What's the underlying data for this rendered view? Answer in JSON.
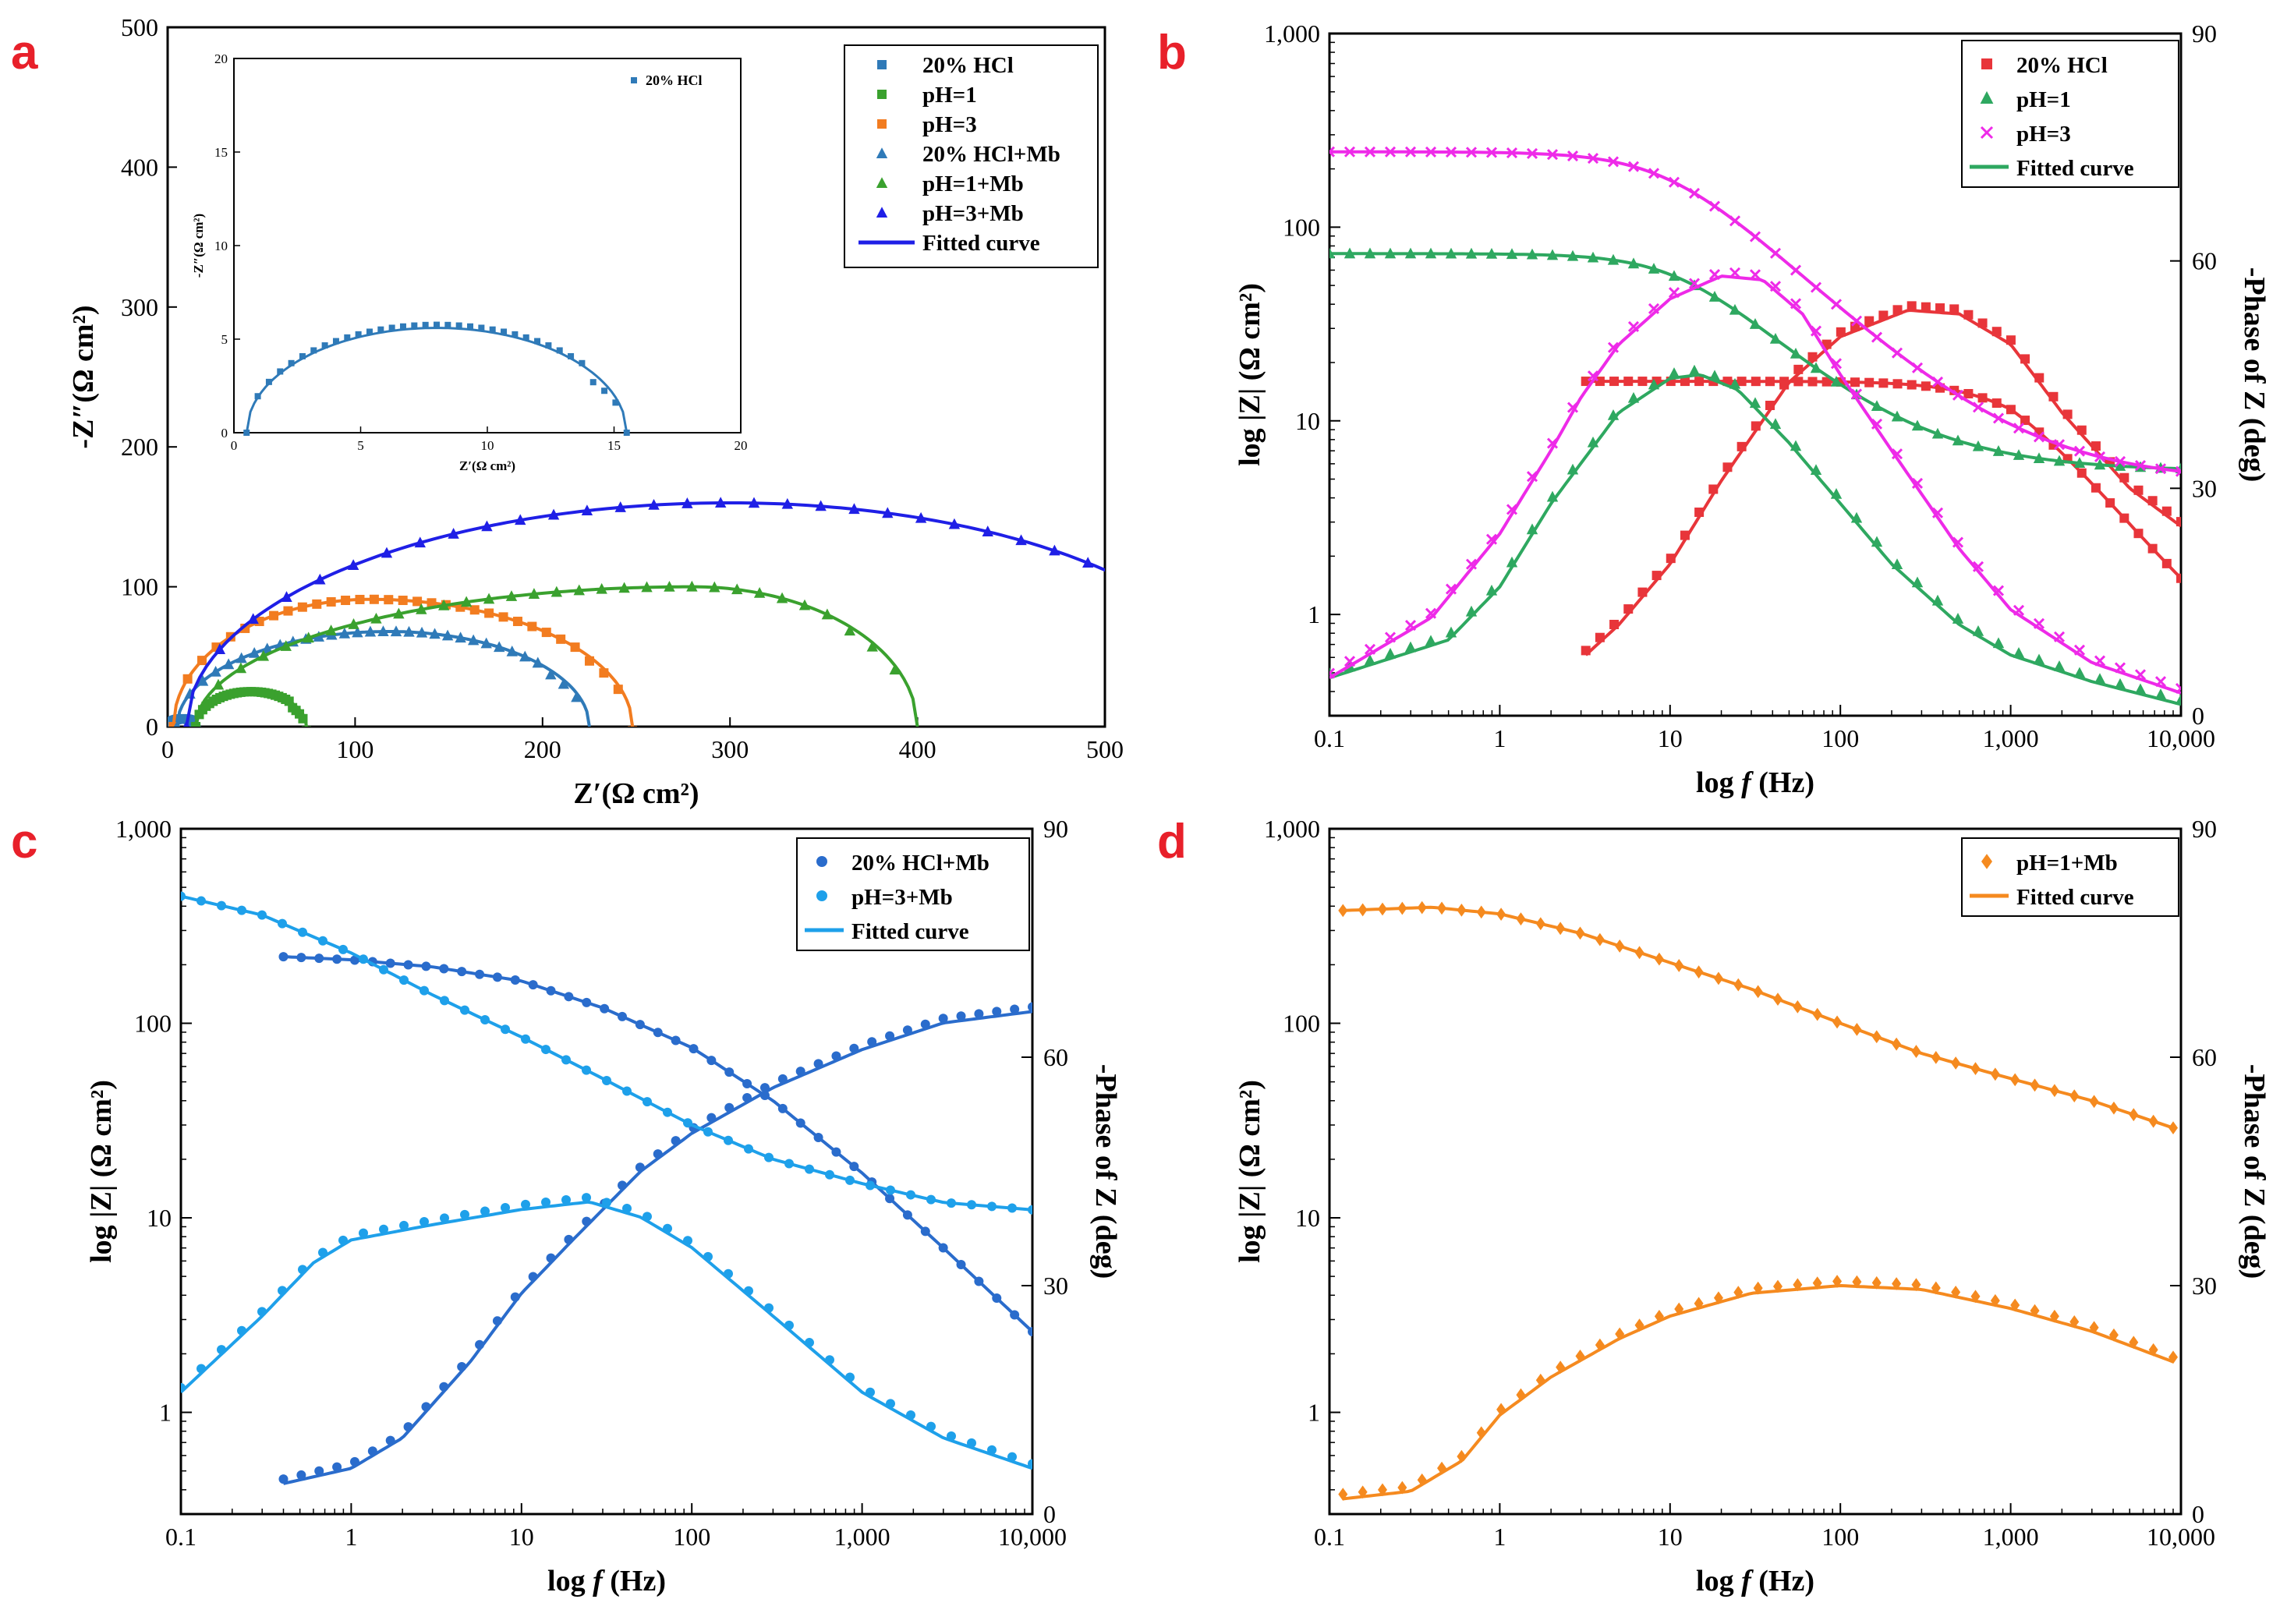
{
  "chart_data": [
    {
      "panel": "a",
      "type": "scatter",
      "title": "",
      "xlabel": "Z′(Ω cm²)",
      "ylabel": "-Z″(Ω cm²)",
      "xlim": [
        0,
        500
      ],
      "ylim": [
        0,
        500
      ],
      "xticks": [
        0,
        100,
        200,
        300,
        400,
        500
      ],
      "yticks": [
        0,
        100,
        200,
        300,
        400,
        500
      ],
      "series": [
        {
          "name": "20% HCl",
          "marker": "square",
          "color": "#2f7ab8",
          "arc": {
            "r0": 0.5,
            "r1": 15.5,
            "hmax": 5.6
          }
        },
        {
          "name": "pH=1",
          "marker": "square",
          "color": "#3aa12e",
          "arc": {
            "r0": 15,
            "r1": 74,
            "hmax": 25
          }
        },
        {
          "name": "pH=3",
          "marker": "square",
          "color": "#f27c20",
          "arc": {
            "r0": 3,
            "r1": 248,
            "hmax": 91,
            "peak": 108
          }
        },
        {
          "name": "20% HCl+Mb",
          "marker": "triangle",
          "color": "#2f7ab8",
          "arc": {
            "r0": 5,
            "r1": 225,
            "hmax": 68,
            "peak": 118
          }
        },
        {
          "name": "pH=1+Mb",
          "marker": "triangle",
          "color": "#3aa12e",
          "arc": {
            "r0": 15,
            "r1": 400,
            "hmax": 100,
            "peak": 280
          }
        },
        {
          "name": "pH=3+Mb",
          "marker": "triangle",
          "color": "#1f1fe6",
          "arc": {
            "r0": 10,
            "r1": 580,
            "hmax": 160,
            "peak": 300
          }
        }
      ],
      "fit_label": "Fitted curve",
      "fit_color": "#1f1fe6",
      "inset": {
        "xlabel": "Z′(Ω cm²)",
        "ylabel": "-Z″(Ω cm²)",
        "xlim": [
          0,
          20
        ],
        "ylim": [
          0,
          20
        ],
        "xticks": [
          0,
          5,
          10,
          15,
          20
        ],
        "yticks": [
          0,
          5,
          10,
          15,
          20
        ],
        "legend": "20% HCl",
        "color": "#2f7ab8"
      }
    },
    {
      "panel": "b",
      "type": "line",
      "xlabel": "log f (Hz)",
      "ylabel": "log |Z| (Ω cm²)",
      "y2label": "-Phase of Z (deg)",
      "xlim": [
        0.1,
        10000
      ],
      "ylim": [
        0.3,
        1000
      ],
      "y2lim": [
        0,
        90
      ],
      "xticks": [
        "0.1",
        "1",
        "10",
        "100",
        "1,000",
        "10,000"
      ],
      "yticks": [
        "1",
        "10",
        "100",
        "1,000"
      ],
      "y2ticks": [
        "0",
        "30",
        "60",
        "90"
      ],
      "series": [
        {
          "name": "20% HCl",
          "marker": "square",
          "color": "#e8353a",
          "modulus": {
            "f0": 3.2,
            "f1": 10000,
            "z_low": 16,
            "z_high": 0.5,
            "fc": 1000,
            "logslope": 0.2
          },
          "phase": [
            [
              3.2,
              8
            ],
            [
              5,
              12
            ],
            [
              10,
              20
            ],
            [
              20,
              31
            ],
            [
              50,
              44
            ],
            [
              100,
              50
            ],
            [
              250,
              53.5
            ],
            [
              500,
              53
            ],
            [
              1000,
              49
            ],
            [
              2000,
              40
            ],
            [
              5000,
              30
            ],
            [
              10000,
              25
            ]
          ]
        },
        {
          "name": "pH=1",
          "marker": "triangle",
          "color": "#2ea860",
          "modulus": {
            "f0": 0.1,
            "f1": 10000,
            "z_low": 73,
            "z_high": 5.5,
            "fc": 12
          },
          "phase": [
            [
              0.1,
              5
            ],
            [
              0.5,
              10
            ],
            [
              1,
              17
            ],
            [
              2,
              28
            ],
            [
              5,
              40
            ],
            [
              10,
              44.5
            ],
            [
              15,
              45
            ],
            [
              25,
              43
            ],
            [
              50,
              36
            ],
            [
              100,
              28
            ],
            [
              200,
              20
            ],
            [
              500,
              12
            ],
            [
              1000,
              8
            ],
            [
              3000,
              4.5
            ],
            [
              10000,
              1.5
            ]
          ]
        },
        {
          "name": "pH=3",
          "marker": "x",
          "color": "#ee2ae8",
          "modulus": {
            "f0": 0.1,
            "f1": 10000,
            "z_low": 245,
            "z_high": 4.8,
            "fc": 10,
            "slope": 0.85
          },
          "phase": [
            [
              0.1,
              5
            ],
            [
              0.4,
              13
            ],
            [
              1,
              24
            ],
            [
              2,
              35
            ],
            [
              3,
              42
            ],
            [
              5,
              49
            ],
            [
              10,
              55
            ],
            [
              20,
              58
            ],
            [
              35,
              57.5
            ],
            [
              60,
              53
            ],
            [
              100,
              45
            ],
            [
              200,
              35
            ],
            [
              500,
              22
            ],
            [
              1000,
              14
            ],
            [
              3000,
              7
            ],
            [
              10000,
              3
            ]
          ]
        }
      ],
      "fit_label": "Fitted curve",
      "fit_color": "#2ea860"
    },
    {
      "panel": "c",
      "type": "line",
      "xlabel": "log f (Hz)",
      "ylabel": "log |Z| (Ω cm²)",
      "y2label": "-Phase of Z (deg)",
      "xlim": [
        0.1,
        10000
      ],
      "ylim": [
        0.3,
        1000
      ],
      "y2lim": [
        0,
        90
      ],
      "xticks": [
        "0.1",
        "1",
        "10",
        "100",
        "1,000",
        "10,000"
      ],
      "yticks": [
        "1",
        "10",
        "100",
        "1,000"
      ],
      "y2ticks": [
        "0",
        "30",
        "60",
        "90"
      ],
      "series": [
        {
          "name": "20% HCl+Mb",
          "marker": "circle",
          "color": "#2a6ccc",
          "modulus": [
            [
              0.4,
              220
            ],
            [
              1,
              212
            ],
            [
              3,
              195
            ],
            [
              10,
              165
            ],
            [
              30,
              120
            ],
            [
              100,
              75
            ],
            [
              300,
              40
            ],
            [
              1000,
              17
            ],
            [
              3000,
              7
            ],
            [
              10000,
              2.6
            ]
          ],
          "phase": [
            [
              0.4,
              4
            ],
            [
              1,
              6
            ],
            [
              2,
              10
            ],
            [
              5,
              20
            ],
            [
              10,
              29
            ],
            [
              20,
              36
            ],
            [
              50,
              45
            ],
            [
              100,
              50
            ],
            [
              300,
              56
            ],
            [
              1000,
              61
            ],
            [
              3000,
              64.5
            ],
            [
              10000,
              66
            ]
          ]
        },
        {
          "name": "pH=3+Mb",
          "marker": "circle",
          "color": "#1ea0ea",
          "modulus": [
            [
              0.1,
              450
            ],
            [
              0.3,
              360
            ],
            [
              1,
              230
            ],
            [
              3,
              140
            ],
            [
              10,
              85
            ],
            [
              30,
              52
            ],
            [
              100,
              30
            ],
            [
              300,
              20
            ],
            [
              1000,
              15
            ],
            [
              3000,
              12
            ],
            [
              10000,
              11
            ]
          ],
          "phase": [
            [
              0.1,
              16
            ],
            [
              0.3,
              26
            ],
            [
              0.6,
              33
            ],
            [
              1,
              36
            ],
            [
              3,
              38
            ],
            [
              10,
              40
            ],
            [
              25,
              41
            ],
            [
              50,
              39
            ],
            [
              100,
              35
            ],
            [
              300,
              26
            ],
            [
              1000,
              16
            ],
            [
              3000,
              10
            ],
            [
              10000,
              6
            ]
          ]
        }
      ],
      "fit_label": "Fitted curve",
      "fit_color": "#1ea0ea"
    },
    {
      "panel": "d",
      "type": "line",
      "xlabel": "log f (Hz)",
      "ylabel": "log |Z| (Ω cm²)",
      "y2label": "-Phase of Z (deg)",
      "xlim": [
        0.1,
        10000
      ],
      "ylim": [
        0.3,
        1000
      ],
      "y2lim": [
        0,
        90
      ],
      "xticks": [
        "0.1",
        "1",
        "10",
        "100",
        "1,000",
        "10,000"
      ],
      "yticks": [
        "1",
        "10",
        "100",
        "1,000"
      ],
      "y2ticks": [
        "0",
        "30",
        "60",
        "90"
      ],
      "series": [
        {
          "name": "pH=1+Mb",
          "marker": "diamond",
          "color": "#f58a1f",
          "modulus": [
            [
              0.12,
              380
            ],
            [
              0.4,
              395
            ],
            [
              1,
              365
            ],
            [
              3,
              290
            ],
            [
              10,
              205
            ],
            [
              30,
              150
            ],
            [
              100,
              100
            ],
            [
              300,
              70
            ],
            [
              1000,
              52
            ],
            [
              3000,
              40
            ],
            [
              9000,
              29
            ]
          ],
          "phase": [
            [
              0.12,
              2
            ],
            [
              0.3,
              3
            ],
            [
              0.6,
              7
            ],
            [
              1,
              13
            ],
            [
              2,
              18
            ],
            [
              5,
              23
            ],
            [
              10,
              26
            ],
            [
              30,
              29
            ],
            [
              100,
              30
            ],
            [
              300,
              29.5
            ],
            [
              1000,
              27
            ],
            [
              3000,
              24
            ],
            [
              9000,
              20
            ]
          ]
        }
      ],
      "fit_label": "Fitted curve",
      "fit_color": "#f58a1f"
    }
  ],
  "panel_labels": {
    "a": "a",
    "b": "b",
    "c": "c",
    "d": "d"
  },
  "colors": {
    "panel_label": "#e8202a"
  }
}
